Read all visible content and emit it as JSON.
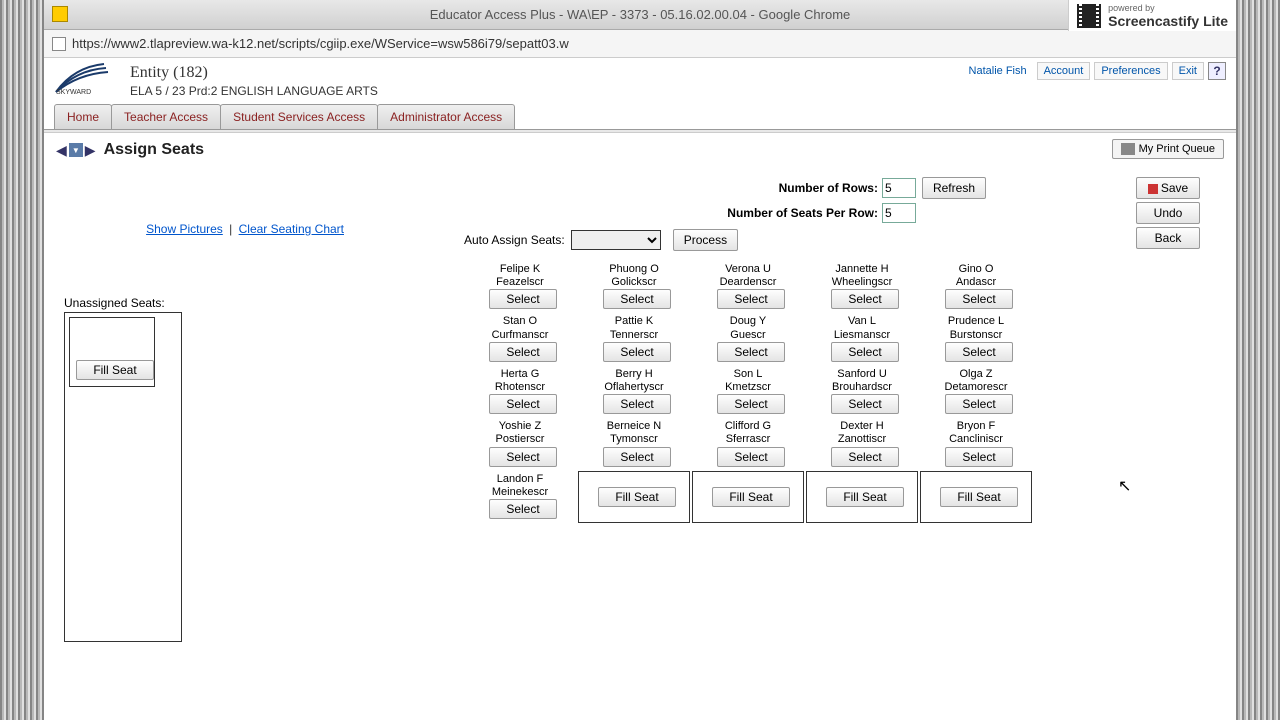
{
  "browser": {
    "title": "Educator Access Plus - WA\\EP - 3373 - 05.16.02.00.04 - Google Chrome",
    "url": "https://www2.tlapreview.wa-k12.net/scripts/cgiip.exe/WService=wsw586i79/sepatt03.w"
  },
  "watermark": {
    "small": "powered by",
    "big": "Screencastify Lite"
  },
  "header": {
    "entity": "Entity (182)",
    "subtitle": "ELA 5 / 23 Prd:2 ENGLISH LANGUAGE ARTS",
    "user": "Natalie Fish",
    "links": {
      "account": "Account",
      "preferences": "Preferences",
      "exit": "Exit"
    }
  },
  "tabs": [
    "Home",
    "Teacher Access",
    "Student Services Access",
    "Administrator Access"
  ],
  "page": {
    "title": "Assign Seats",
    "print_queue": "My Print Queue",
    "show_pictures": "Show Pictures",
    "clear_chart": "Clear Seating Chart",
    "rows_label": "Number of Rows:",
    "rows_value": "5",
    "seats_label": "Number of Seats Per Row:",
    "seats_value": "5",
    "refresh": "Refresh",
    "auto_label": "Auto Assign Seats:",
    "process": "Process",
    "unassigned_label": "Unassigned Seats:",
    "fill_seat": "Fill Seat",
    "select": "Select",
    "actions": {
      "save": "Save",
      "undo": "Undo",
      "back": "Back"
    }
  },
  "seats": [
    {
      "first": "Felipe K",
      "last": "Feazelscr"
    },
    {
      "first": "Phuong O",
      "last": "Golickscr"
    },
    {
      "first": "Verona U",
      "last": "Deardenscr"
    },
    {
      "first": "Jannette H",
      "last": "Wheelingscr"
    },
    {
      "first": "Gino O",
      "last": "Andascr"
    },
    {
      "first": "Stan O",
      "last": "Curfmanscr"
    },
    {
      "first": "Pattie K",
      "last": "Tennerscr"
    },
    {
      "first": "Doug Y",
      "last": "Guescr"
    },
    {
      "first": "Van L",
      "last": "Liesmanscr"
    },
    {
      "first": "Prudence L",
      "last": "Burstonscr"
    },
    {
      "first": "Herta G",
      "last": "Rhotenscr"
    },
    {
      "first": "Berry H",
      "last": "Oflahertyscr"
    },
    {
      "first": "Son L",
      "last": "Kmetzscr"
    },
    {
      "first": "Sanford U",
      "last": "Brouhardscr"
    },
    {
      "first": "Olga Z",
      "last": "Detamorescr"
    },
    {
      "first": "Yoshie Z",
      "last": "Postierscr"
    },
    {
      "first": "Berneice N",
      "last": "Tymonscr"
    },
    {
      "first": "Clifford G",
      "last": "Sferrascr"
    },
    {
      "first": "Dexter H",
      "last": "Zanottiscr"
    },
    {
      "first": "Bryon F",
      "last": "Cancliniscr"
    },
    {
      "first": "Landon F",
      "last": "Meinekescr"
    }
  ]
}
